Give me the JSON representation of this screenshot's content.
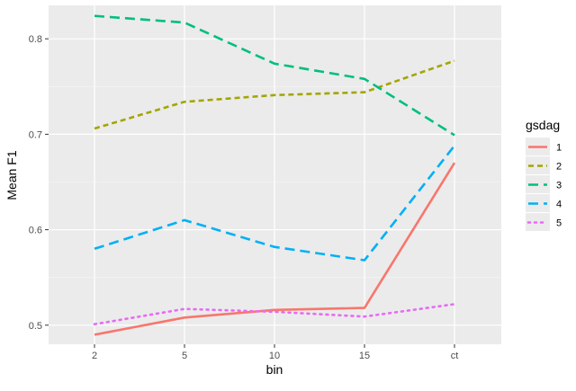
{
  "chart_data": {
    "type": "line",
    "title": "",
    "xlabel": "bin",
    "ylabel": "Mean F1",
    "categories": [
      "2",
      "5",
      "10",
      "15",
      "ct"
    ],
    "yticks": [
      0.5,
      0.6,
      0.7,
      0.8
    ],
    "ylim": [
      0.48,
      0.835
    ],
    "grid": true,
    "legend": {
      "title": "gsdag",
      "placement": "right"
    },
    "series": [
      {
        "name": "1",
        "color": "#F8766D",
        "dash": "solid",
        "values": [
          0.49,
          0.508,
          0.516,
          0.518,
          0.67
        ]
      },
      {
        "name": "2",
        "color": "#A3A500",
        "dash": "short-dash",
        "values": [
          0.706,
          0.734,
          0.741,
          0.744,
          0.777
        ]
      },
      {
        "name": "3",
        "color": "#00BF7D",
        "dash": "long-dash",
        "values": [
          0.824,
          0.817,
          0.774,
          0.758,
          0.699
        ]
      },
      {
        "name": "4",
        "color": "#00B0F6",
        "dash": "long-dash",
        "values": [
          0.58,
          0.61,
          0.582,
          0.568,
          0.688
        ]
      },
      {
        "name": "5",
        "color": "#E76BF3",
        "dash": "dotted",
        "values": [
          0.501,
          0.517,
          0.514,
          0.509,
          0.522
        ]
      }
    ]
  }
}
